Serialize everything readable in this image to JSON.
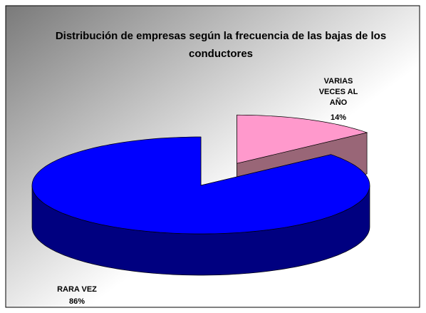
{
  "chart_data": {
    "type": "pie3d",
    "title": "Distribución de empresas según la frecuencia de las bajas de los conductores",
    "categories": [
      "VARIAS VECES AL AÑO",
      "RARA VEZ"
    ],
    "values": [
      14,
      86
    ],
    "value_labels": [
      "14%",
      "86%"
    ],
    "colors": [
      "#ff99cc",
      "#0000ff"
    ],
    "side_colors": [
      "#996677",
      "#000080"
    ]
  }
}
